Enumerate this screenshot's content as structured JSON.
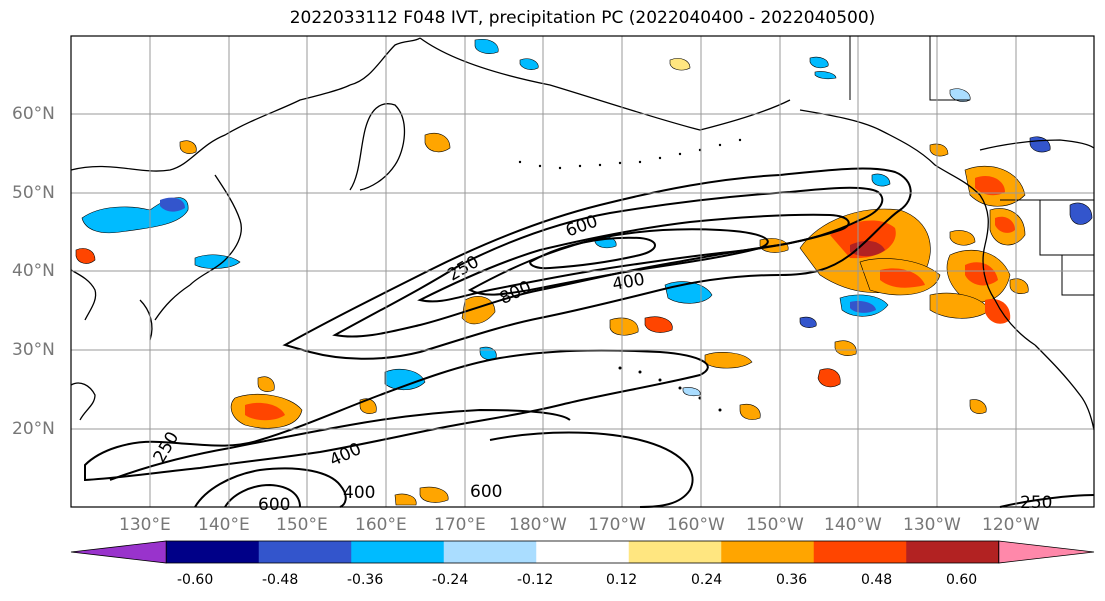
{
  "title": "2022033112 F048 IVT, precipitation PC (2022040400 - 2022040500)",
  "lat_labels": [
    "60°N",
    "50°N",
    "40°N",
    "30°N",
    "20°N"
  ],
  "lon_labels": [
    "130°E",
    "140°E",
    "150°E",
    "160°E",
    "170°E",
    "180°W",
    "170°W",
    "160°W",
    "150°W",
    "140°W",
    "130°W",
    "120°W"
  ],
  "contour_labels": [
    "250",
    "600",
    "800",
    "400",
    "250",
    "400",
    "400",
    "600",
    "600",
    "250"
  ],
  "colorbar": {
    "ticks": [
      "-0.60",
      "-0.48",
      "-0.36",
      "-0.24",
      "-0.12",
      "0.12",
      "0.24",
      "0.36",
      "0.48",
      "0.60"
    ],
    "colors": [
      "#9933cc",
      "#000088",
      "#3355cc",
      "#00bbff",
      "#aaddff",
      "#ffffff",
      "#ffe680",
      "#ffa500",
      "#ff4500",
      "#b22222",
      "#ff88aa"
    ]
  }
}
